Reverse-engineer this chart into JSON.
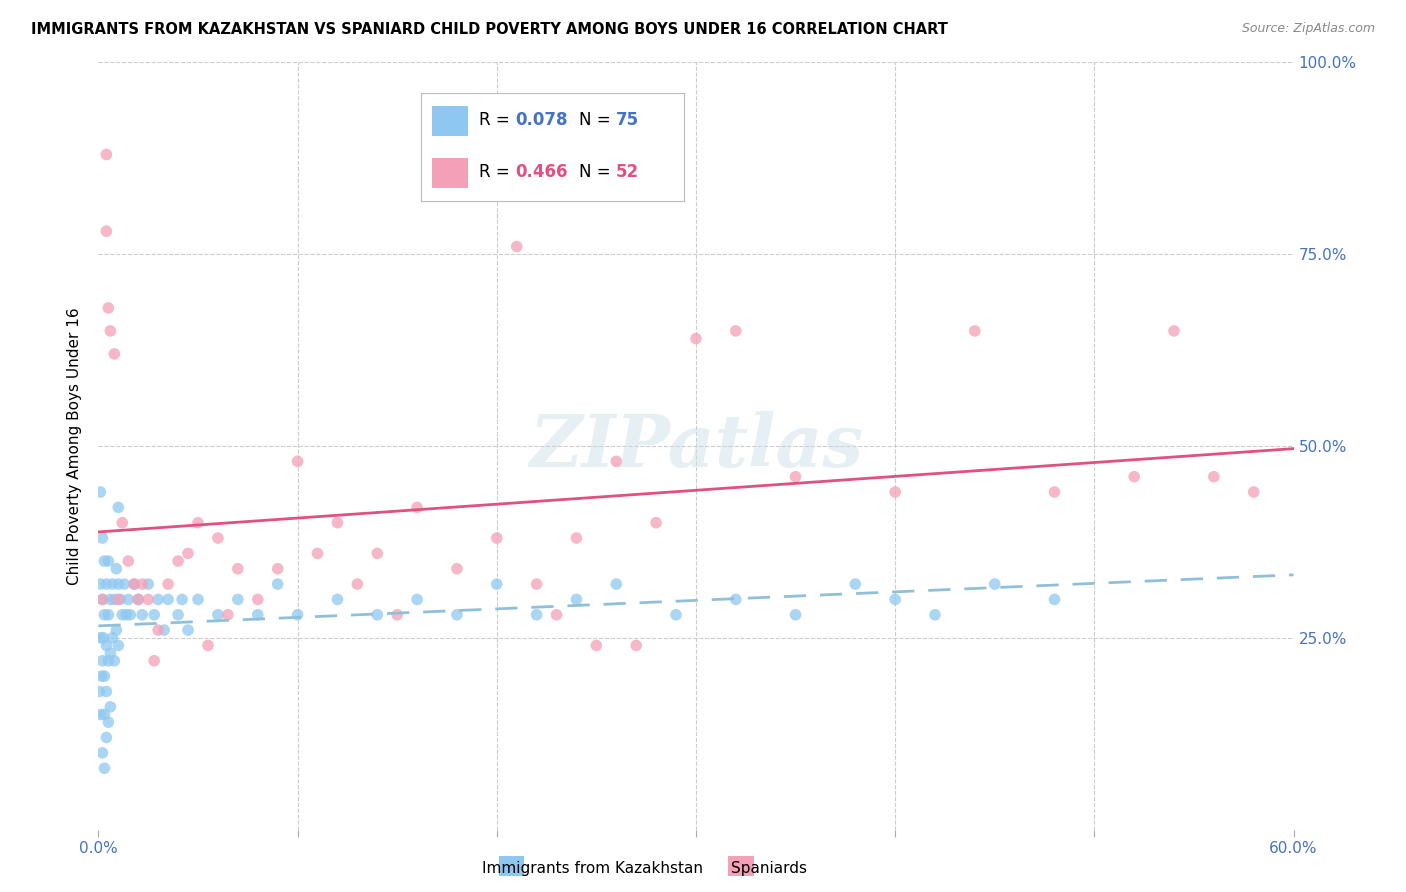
{
  "title": "IMMIGRANTS FROM KAZAKHSTAN VS SPANIARD CHILD POVERTY AMONG BOYS UNDER 16 CORRELATION CHART",
  "source": "Source: ZipAtlas.com",
  "ylabel": "Child Poverty Among Boys Under 16",
  "xlim": [
    0.0,
    0.6
  ],
  "ylim": [
    0.0,
    1.0
  ],
  "kaz_color": "#8ec8f0",
  "kaz_line_color": "#a0d0f0",
  "spa_color": "#f4a0b8",
  "spa_line_color": "#e05080",
  "kaz_R": 0.078,
  "kaz_N": 75,
  "spa_R": 0.466,
  "spa_N": 52,
  "legend_R1_color": "#4472C4",
  "legend_N1_color": "#4472C4",
  "legend_R2_color": "#e05080",
  "legend_N2_color": "#e05080",
  "tick_color": "#4472C4",
  "watermark": "ZIPatlas",
  "kaz_x": [
    0.0005,
    0.001,
    0.001,
    0.001,
    0.0015,
    0.002,
    0.002,
    0.002,
    0.0025,
    0.003,
    0.003,
    0.003,
    0.003,
    0.004,
    0.004,
    0.004,
    0.004,
    0.005,
    0.005,
    0.005,
    0.005,
    0.006,
    0.006,
    0.006,
    0.007,
    0.007,
    0.008,
    0.008,
    0.009,
    0.009,
    0.01,
    0.01,
    0.011,
    0.012,
    0.013,
    0.014,
    0.015,
    0.016,
    0.018,
    0.02,
    0.022,
    0.025,
    0.028,
    0.03,
    0.033,
    0.035,
    0.04,
    0.042,
    0.045,
    0.05,
    0.06,
    0.07,
    0.08,
    0.09,
    0.1,
    0.12,
    0.14,
    0.16,
    0.18,
    0.2,
    0.22,
    0.24,
    0.26,
    0.29,
    0.32,
    0.35,
    0.38,
    0.4,
    0.42,
    0.45,
    0.48,
    0.001,
    0.002,
    0.003,
    0.01
  ],
  "kaz_y": [
    0.18,
    0.32,
    0.25,
    0.15,
    0.2,
    0.3,
    0.22,
    0.1,
    0.25,
    0.28,
    0.2,
    0.15,
    0.08,
    0.32,
    0.24,
    0.18,
    0.12,
    0.35,
    0.28,
    0.22,
    0.14,
    0.3,
    0.23,
    0.16,
    0.32,
    0.25,
    0.3,
    0.22,
    0.34,
    0.26,
    0.32,
    0.24,
    0.3,
    0.28,
    0.32,
    0.28,
    0.3,
    0.28,
    0.32,
    0.3,
    0.28,
    0.32,
    0.28,
    0.3,
    0.26,
    0.3,
    0.28,
    0.3,
    0.26,
    0.3,
    0.28,
    0.3,
    0.28,
    0.32,
    0.28,
    0.3,
    0.28,
    0.3,
    0.28,
    0.32,
    0.28,
    0.3,
    0.32,
    0.28,
    0.3,
    0.28,
    0.32,
    0.3,
    0.28,
    0.32,
    0.3,
    0.44,
    0.38,
    0.35,
    0.42
  ],
  "spa_x": [
    0.002,
    0.004,
    0.004,
    0.005,
    0.006,
    0.008,
    0.01,
    0.012,
    0.015,
    0.018,
    0.02,
    0.022,
    0.025,
    0.028,
    0.03,
    0.035,
    0.04,
    0.045,
    0.05,
    0.055,
    0.06,
    0.065,
    0.07,
    0.08,
    0.09,
    0.1,
    0.11,
    0.12,
    0.13,
    0.14,
    0.15,
    0.16,
    0.18,
    0.2,
    0.21,
    0.22,
    0.23,
    0.24,
    0.25,
    0.26,
    0.27,
    0.28,
    0.3,
    0.32,
    0.35,
    0.4,
    0.44,
    0.48,
    0.52,
    0.54,
    0.56,
    0.58
  ],
  "spa_y": [
    0.3,
    0.88,
    0.78,
    0.68,
    0.65,
    0.62,
    0.3,
    0.4,
    0.35,
    0.32,
    0.3,
    0.32,
    0.3,
    0.22,
    0.26,
    0.32,
    0.35,
    0.36,
    0.4,
    0.24,
    0.38,
    0.28,
    0.34,
    0.3,
    0.34,
    0.48,
    0.36,
    0.4,
    0.32,
    0.36,
    0.28,
    0.42,
    0.34,
    0.38,
    0.76,
    0.32,
    0.28,
    0.38,
    0.24,
    0.48,
    0.24,
    0.4,
    0.64,
    0.65,
    0.46,
    0.44,
    0.65,
    0.44,
    0.46,
    0.65,
    0.46,
    0.44
  ]
}
